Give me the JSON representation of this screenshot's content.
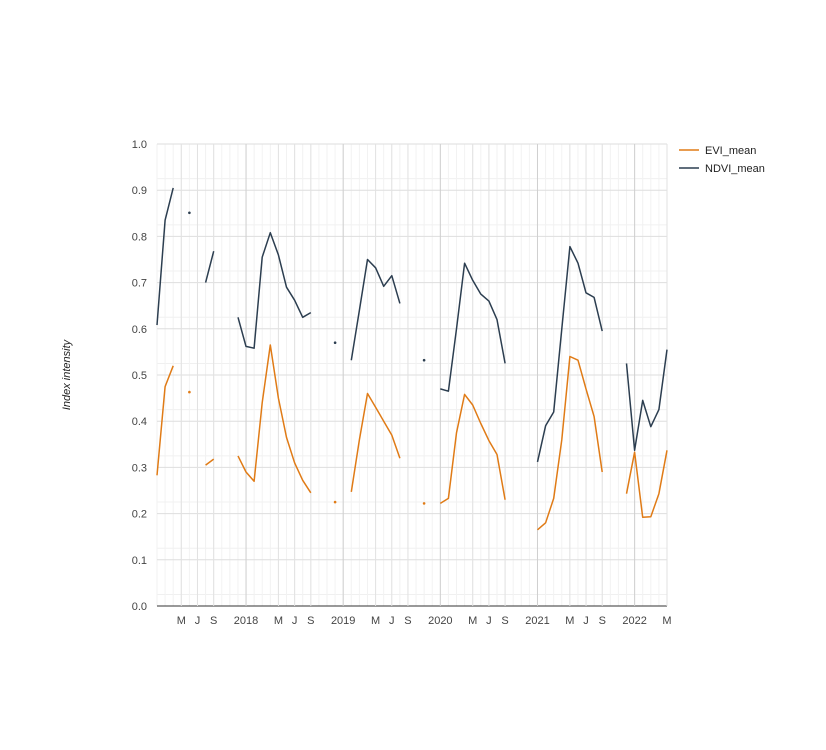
{
  "chart_data": {
    "type": "line",
    "title": "",
    "xlabel": "",
    "ylabel": "Index intensity",
    "ylim": [
      0,
      1
    ],
    "yticks": [
      "0.0",
      "0.1",
      "0.2",
      "0.3",
      "0.4",
      "0.5",
      "0.6",
      "0.7",
      "0.8",
      "0.9",
      "1.0"
    ],
    "xlim": [
      "2017-02",
      "2022-05"
    ],
    "xticks": [
      {
        "t": "2017-05",
        "label": "M"
      },
      {
        "t": "2017-07",
        "label": "J"
      },
      {
        "t": "2017-09",
        "label": "S"
      },
      {
        "t": "2018-01",
        "label": "2018"
      },
      {
        "t": "2018-05",
        "label": "M"
      },
      {
        "t": "2018-07",
        "label": "J"
      },
      {
        "t": "2018-09",
        "label": "S"
      },
      {
        "t": "2019-01",
        "label": "2019"
      },
      {
        "t": "2019-05",
        "label": "M"
      },
      {
        "t": "2019-07",
        "label": "J"
      },
      {
        "t": "2019-09",
        "label": "S"
      },
      {
        "t": "2020-01",
        "label": "2020"
      },
      {
        "t": "2020-05",
        "label": "M"
      },
      {
        "t": "2020-07",
        "label": "J"
      },
      {
        "t": "2020-09",
        "label": "S"
      },
      {
        "t": "2021-01",
        "label": "2021"
      },
      {
        "t": "2021-05",
        "label": "M"
      },
      {
        "t": "2021-07",
        "label": "J"
      },
      {
        "t": "2021-09",
        "label": "S"
      },
      {
        "t": "2022-01",
        "label": "2022"
      },
      {
        "t": "2022-05",
        "label": "M"
      }
    ],
    "grid": true,
    "legend": "top-right",
    "x": [
      "2017-02",
      "2017-03",
      "2017-04",
      "2017-05",
      "2017-06",
      "2017-07",
      "2017-08",
      "2017-09",
      "2017-10",
      "2017-11",
      "2017-12",
      "2018-01",
      "2018-02",
      "2018-03",
      "2018-04",
      "2018-05",
      "2018-06",
      "2018-07",
      "2018-08",
      "2018-09",
      "2018-10",
      "2018-11",
      "2018-12",
      "2019-01",
      "2019-02",
      "2019-03",
      "2019-04",
      "2019-05",
      "2019-06",
      "2019-07",
      "2019-08",
      "2019-09",
      "2019-10",
      "2019-11",
      "2019-12",
      "2020-01",
      "2020-02",
      "2020-03",
      "2020-04",
      "2020-05",
      "2020-06",
      "2020-07",
      "2020-08",
      "2020-09",
      "2020-10",
      "2020-11",
      "2020-12",
      "2021-01",
      "2021-02",
      "2021-03",
      "2021-04",
      "2021-05",
      "2021-06",
      "2021-07",
      "2021-08",
      "2021-09",
      "2021-10",
      "2021-11",
      "2021-12",
      "2022-01",
      "2022-02",
      "2022-03",
      "2022-04",
      "2022-05"
    ],
    "series": [
      {
        "name": "EVI_mean",
        "color": "#e07b16",
        "values": [
          0.283,
          0.475,
          0.52,
          null,
          0.463,
          null,
          0.305,
          0.318,
          null,
          null,
          0.325,
          0.29,
          0.27,
          0.44,
          0.565,
          0.45,
          0.365,
          0.31,
          0.272,
          0.245,
          null,
          null,
          0.225,
          null,
          0.247,
          0.36,
          0.46,
          0.43,
          0.4,
          0.37,
          0.32,
          null,
          null,
          0.222,
          null,
          0.222,
          0.233,
          0.375,
          0.458,
          0.435,
          0.395,
          0.358,
          0.328,
          0.23,
          null,
          null,
          null,
          0.165,
          0.18,
          0.233,
          0.36,
          0.54,
          0.532,
          0.47,
          0.41,
          0.29,
          null,
          null,
          0.243,
          0.333,
          0.192,
          0.193,
          0.243,
          0.337
        ]
      },
      {
        "name": "NDVI_mean",
        "color": "#2c3e50",
        "values": [
          0.608,
          0.835,
          0.905,
          null,
          0.851,
          null,
          0.7,
          0.768,
          null,
          null,
          0.625,
          0.562,
          0.558,
          0.755,
          0.808,
          0.76,
          0.69,
          0.662,
          0.625,
          0.635,
          null,
          null,
          0.57,
          null,
          0.532,
          0.64,
          0.75,
          0.732,
          0.692,
          0.715,
          0.655,
          null,
          null,
          0.532,
          null,
          0.47,
          0.465,
          0.6,
          0.742,
          0.705,
          0.675,
          0.66,
          0.62,
          0.525,
          null,
          null,
          null,
          0.312,
          0.39,
          0.42,
          0.6,
          0.778,
          0.742,
          0.678,
          0.668,
          0.595,
          null,
          null,
          0.525,
          0.337,
          0.445,
          0.388,
          0.425,
          0.555
        ]
      }
    ]
  }
}
